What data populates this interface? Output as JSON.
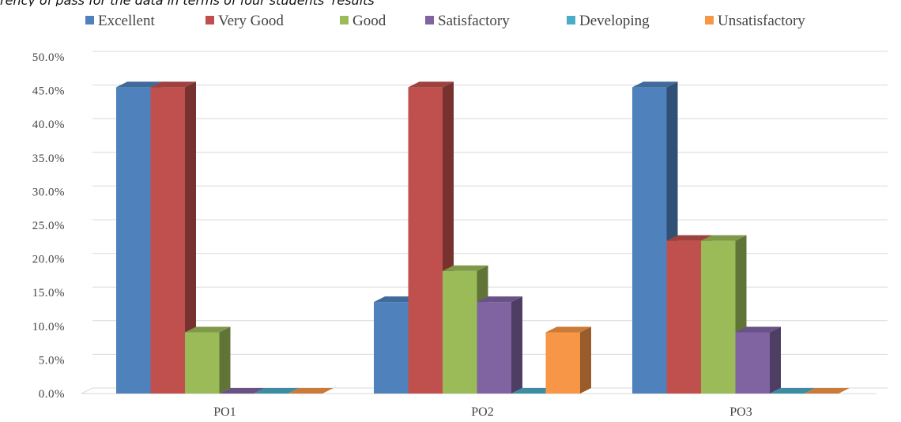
{
  "caption_fragment": "rency of pass for the data in terms of four students' results",
  "chart_data": {
    "type": "bar",
    "style": "3d-clustered-column",
    "categories": [
      "PO1",
      "PO2",
      "PO3"
    ],
    "series": [
      {
        "name": "Excellent",
        "color": "#4F81BD",
        "values": [
          45.5,
          13.6,
          45.5
        ]
      },
      {
        "name": "Very Good",
        "color": "#C0504D",
        "values": [
          45.5,
          45.5,
          22.7
        ]
      },
      {
        "name": "Good",
        "color": "#9BBB59",
        "values": [
          9.1,
          18.2,
          22.7
        ]
      },
      {
        "name": "Satisfactory",
        "color": "#8064A2",
        "values": [
          0,
          13.6,
          9.1
        ]
      },
      {
        "name": "Developing",
        "color": "#4BACC6",
        "values": [
          0,
          0,
          0
        ]
      },
      {
        "name": "Unsatisfactory",
        "color": "#F79646",
        "values": [
          0,
          9.1,
          0
        ]
      }
    ],
    "y_ticks": [
      "0.0%",
      "5.0%",
      "10.0%",
      "15.0%",
      "20.0%",
      "25.0%",
      "30.0%",
      "35.0%",
      "40.0%",
      "45.0%",
      "50.0%"
    ],
    "ylim": [
      0,
      50
    ],
    "y_unit": "%",
    "grid": true,
    "legend_position": "top"
  }
}
